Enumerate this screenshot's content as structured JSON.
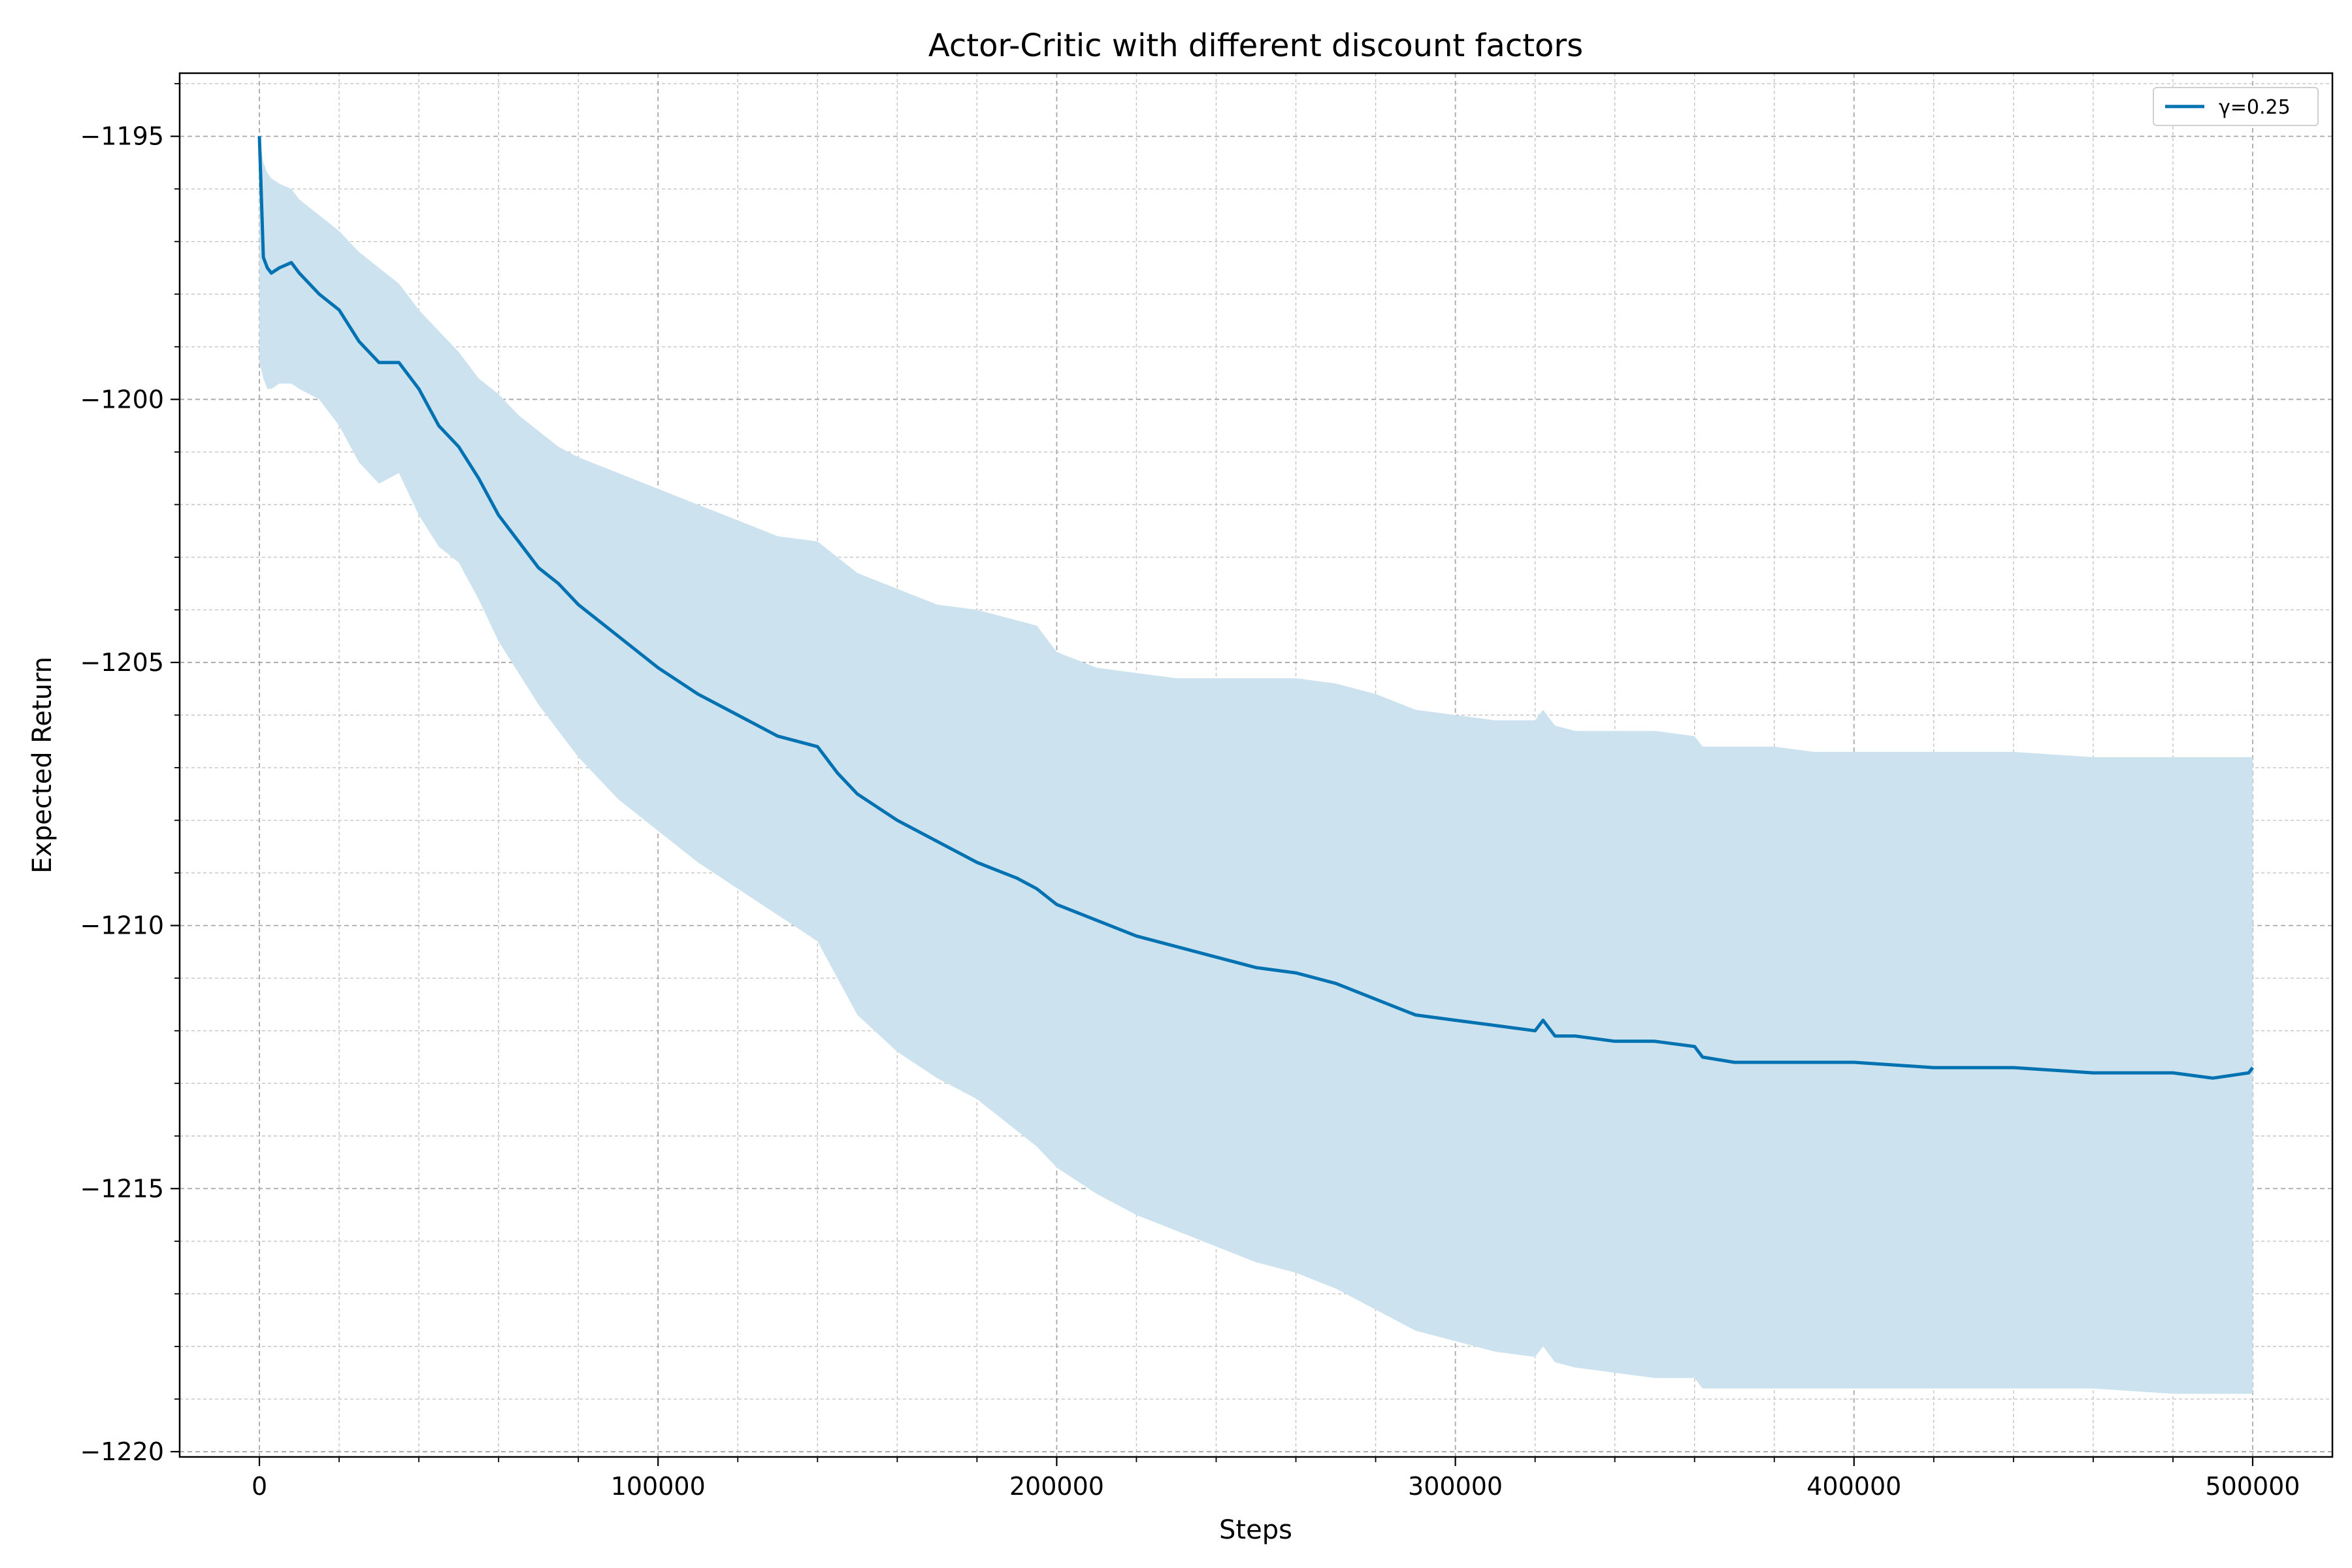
{
  "chart_data": {
    "type": "line",
    "title": "Actor-Critic with different discount factors",
    "xlabel": "Steps",
    "ylabel": "Expected Return",
    "xlim": [
      -20000,
      520000
    ],
    "ylim": [
      -1220.1,
      -1193.8
    ],
    "x_ticks": [
      0,
      100000,
      200000,
      300000,
      400000,
      500000
    ],
    "x_tick_labels": [
      "0",
      "100000",
      "200000",
      "300000",
      "400000",
      "500000"
    ],
    "y_ticks": [
      -1195,
      -1200,
      -1205,
      -1210,
      -1215,
      -1220
    ],
    "y_tick_labels": [
      "−1195",
      "−1200",
      "−1205",
      "−1210",
      "−1215",
      "−1220"
    ],
    "grid": true,
    "minor_grid": true,
    "legend_position": "top-right",
    "series": [
      {
        "name": "γ=0.25",
        "color": "#0072b2",
        "band_color": "#cde2ef",
        "x": [
          0,
          1000,
          2000,
          3000,
          5000,
          8000,
          10000,
          15000,
          20000,
          25000,
          30000,
          35000,
          40000,
          45000,
          50000,
          55000,
          60000,
          65000,
          70000,
          75000,
          80000,
          90000,
          100000,
          110000,
          120000,
          130000,
          140000,
          145000,
          150000,
          160000,
          170000,
          180000,
          190000,
          195000,
          200000,
          210000,
          220000,
          230000,
          240000,
          250000,
          260000,
          270000,
          280000,
          290000,
          300000,
          310000,
          320000,
          322000,
          325000,
          330000,
          340000,
          350000,
          360000,
          362000,
          370000,
          380000,
          390000,
          400000,
          420000,
          440000,
          460000,
          480000,
          490000,
          499000,
          500000
        ],
        "mean": [
          -1195.0,
          -1197.3,
          -1197.5,
          -1197.6,
          -1197.5,
          -1197.4,
          -1197.6,
          -1198.0,
          -1198.3,
          -1198.9,
          -1199.3,
          -1199.3,
          -1199.8,
          -1200.5,
          -1200.9,
          -1201.5,
          -1202.2,
          -1202.7,
          -1203.2,
          -1203.5,
          -1203.9,
          -1204.5,
          -1205.1,
          -1205.6,
          -1206.0,
          -1206.4,
          -1206.6,
          -1207.1,
          -1207.5,
          -1208.0,
          -1208.4,
          -1208.8,
          -1209.1,
          -1209.3,
          -1209.6,
          -1209.9,
          -1210.2,
          -1210.4,
          -1210.6,
          -1210.8,
          -1210.9,
          -1211.1,
          -1211.4,
          -1211.7,
          -1211.8,
          -1211.9,
          -1212.0,
          -1211.8,
          -1212.1,
          -1212.1,
          -1212.2,
          -1212.2,
          -1212.3,
          -1212.5,
          -1212.6,
          -1212.6,
          -1212.6,
          -1212.6,
          -1212.7,
          -1212.7,
          -1212.8,
          -1212.8,
          -1212.9,
          -1212.8,
          -1212.7
        ],
        "lower": [
          -1199.3,
          -1199.6,
          -1199.8,
          -1199.8,
          -1199.7,
          -1199.7,
          -1199.8,
          -1200.0,
          -1200.5,
          -1201.2,
          -1201.6,
          -1201.4,
          -1202.2,
          -1202.8,
          -1203.1,
          -1203.8,
          -1204.6,
          -1205.2,
          -1205.8,
          -1206.3,
          -1206.8,
          -1207.6,
          -1208.2,
          -1208.8,
          -1209.3,
          -1209.8,
          -1210.3,
          -1211.0,
          -1211.7,
          -1212.4,
          -1212.9,
          -1213.3,
          -1213.9,
          -1214.2,
          -1214.6,
          -1215.1,
          -1215.5,
          -1215.8,
          -1216.1,
          -1216.4,
          -1216.6,
          -1216.9,
          -1217.3,
          -1217.7,
          -1217.9,
          -1218.1,
          -1218.2,
          -1218.0,
          -1218.3,
          -1218.4,
          -1218.5,
          -1218.6,
          -1218.6,
          -1218.8,
          -1218.8,
          -1218.8,
          -1218.8,
          -1218.8,
          -1218.8,
          -1218.8,
          -1218.8,
          -1218.9,
          -1218.9,
          -1218.9,
          -1218.9
        ],
        "upper": [
          -1195.0,
          -1195.5,
          -1195.7,
          -1195.8,
          -1195.9,
          -1196.0,
          -1196.2,
          -1196.5,
          -1196.8,
          -1197.2,
          -1197.5,
          -1197.8,
          -1198.3,
          -1198.7,
          -1199.1,
          -1199.6,
          -1199.9,
          -1200.3,
          -1200.6,
          -1200.9,
          -1201.1,
          -1201.4,
          -1201.7,
          -1202.0,
          -1202.3,
          -1202.6,
          -1202.7,
          -1203.0,
          -1203.3,
          -1203.6,
          -1203.9,
          -1204.0,
          -1204.2,
          -1204.3,
          -1204.8,
          -1205.1,
          -1205.2,
          -1205.3,
          -1205.3,
          -1205.3,
          -1205.3,
          -1205.4,
          -1205.6,
          -1205.9,
          -1206.0,
          -1206.1,
          -1206.1,
          -1205.9,
          -1206.2,
          -1206.3,
          -1206.3,
          -1206.3,
          -1206.4,
          -1206.6,
          -1206.6,
          -1206.6,
          -1206.7,
          -1206.7,
          -1206.7,
          -1206.7,
          -1206.8,
          -1206.8,
          -1206.8,
          -1206.8,
          -1206.8
        ]
      }
    ]
  }
}
